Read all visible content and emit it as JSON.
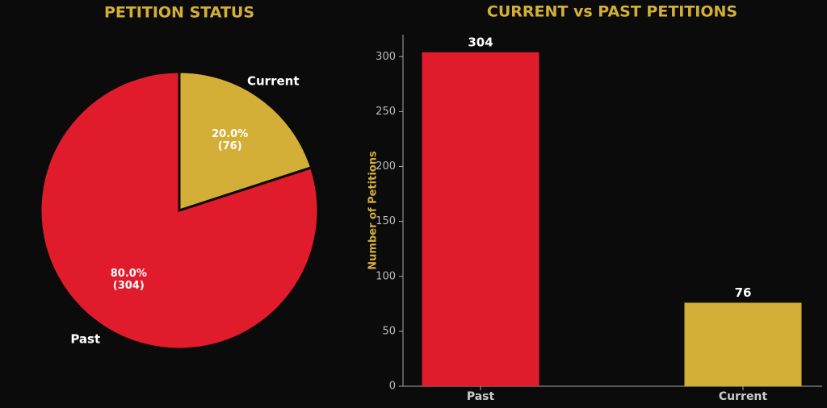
{
  "chart_data": [
    {
      "type": "pie",
      "title": "PETITION STATUS",
      "categories": [
        "Current",
        "Past"
      ],
      "values": [
        20,
        80
      ],
      "value_labels": [
        "20.0%",
        "80.0%"
      ],
      "count_labels": [
        "(76)",
        "(304)"
      ],
      "colors": [
        "#d4af37",
        "#e01b2c"
      ]
    },
    {
      "type": "bar",
      "title": "CURRENT vs PAST PETITIONS",
      "ylabel": "Number of Petitions",
      "categories": [
        "Past",
        "Current"
      ],
      "values": [
        304,
        76
      ],
      "colors": [
        "#e01b2c",
        "#d4af37"
      ],
      "ylim": [
        0,
        320
      ],
      "yticks": [
        0,
        50,
        100,
        150,
        200,
        250,
        300
      ]
    }
  ]
}
